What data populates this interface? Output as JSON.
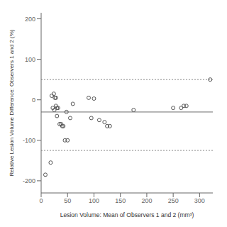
{
  "chart_data": {
    "type": "scatter",
    "title": "",
    "xlabel": "Lesion Volume: Mean of Observers 1 and 2 (mm³)",
    "ylabel": "Relative Lesion Volume Difference: Observers 1 and 2 (%)",
    "x": [
      8,
      18,
      20,
      22,
      24,
      25,
      26,
      28,
      28,
      30,
      30,
      32,
      35,
      38,
      40,
      42,
      45,
      48,
      50,
      55,
      60,
      90,
      95,
      100,
      110,
      120,
      125,
      130,
      175,
      250,
      265,
      270,
      275,
      320
    ],
    "values": [
      -185,
      -155,
      10,
      -20,
      15,
      -25,
      5,
      -15,
      5,
      -20,
      -40,
      -20,
      -60,
      -60,
      -65,
      -65,
      -100,
      -30,
      -100,
      -45,
      -10,
      5,
      -45,
      3,
      -50,
      -55,
      -65,
      -65,
      -25,
      -20,
      -20,
      -15,
      -15,
      50
    ],
    "color": "#555555",
    "marker": "open circle",
    "xlim": [
      0,
      325
    ],
    "ylim": [
      -230,
      215
    ],
    "xticks": [
      0,
      50,
      100,
      150,
      200,
      250,
      300
    ],
    "yticks": [
      -200,
      -100,
      0,
      100,
      200
    ],
    "grid": false,
    "reference_lines": [
      {
        "value": -30,
        "line_style": "solid",
        "color": "#888888"
      },
      {
        "value": 50,
        "line_style": "dotted",
        "color": "#888888"
      },
      {
        "value": -125,
        "line_style": "dotted",
        "color": "#888888"
      }
    ]
  }
}
